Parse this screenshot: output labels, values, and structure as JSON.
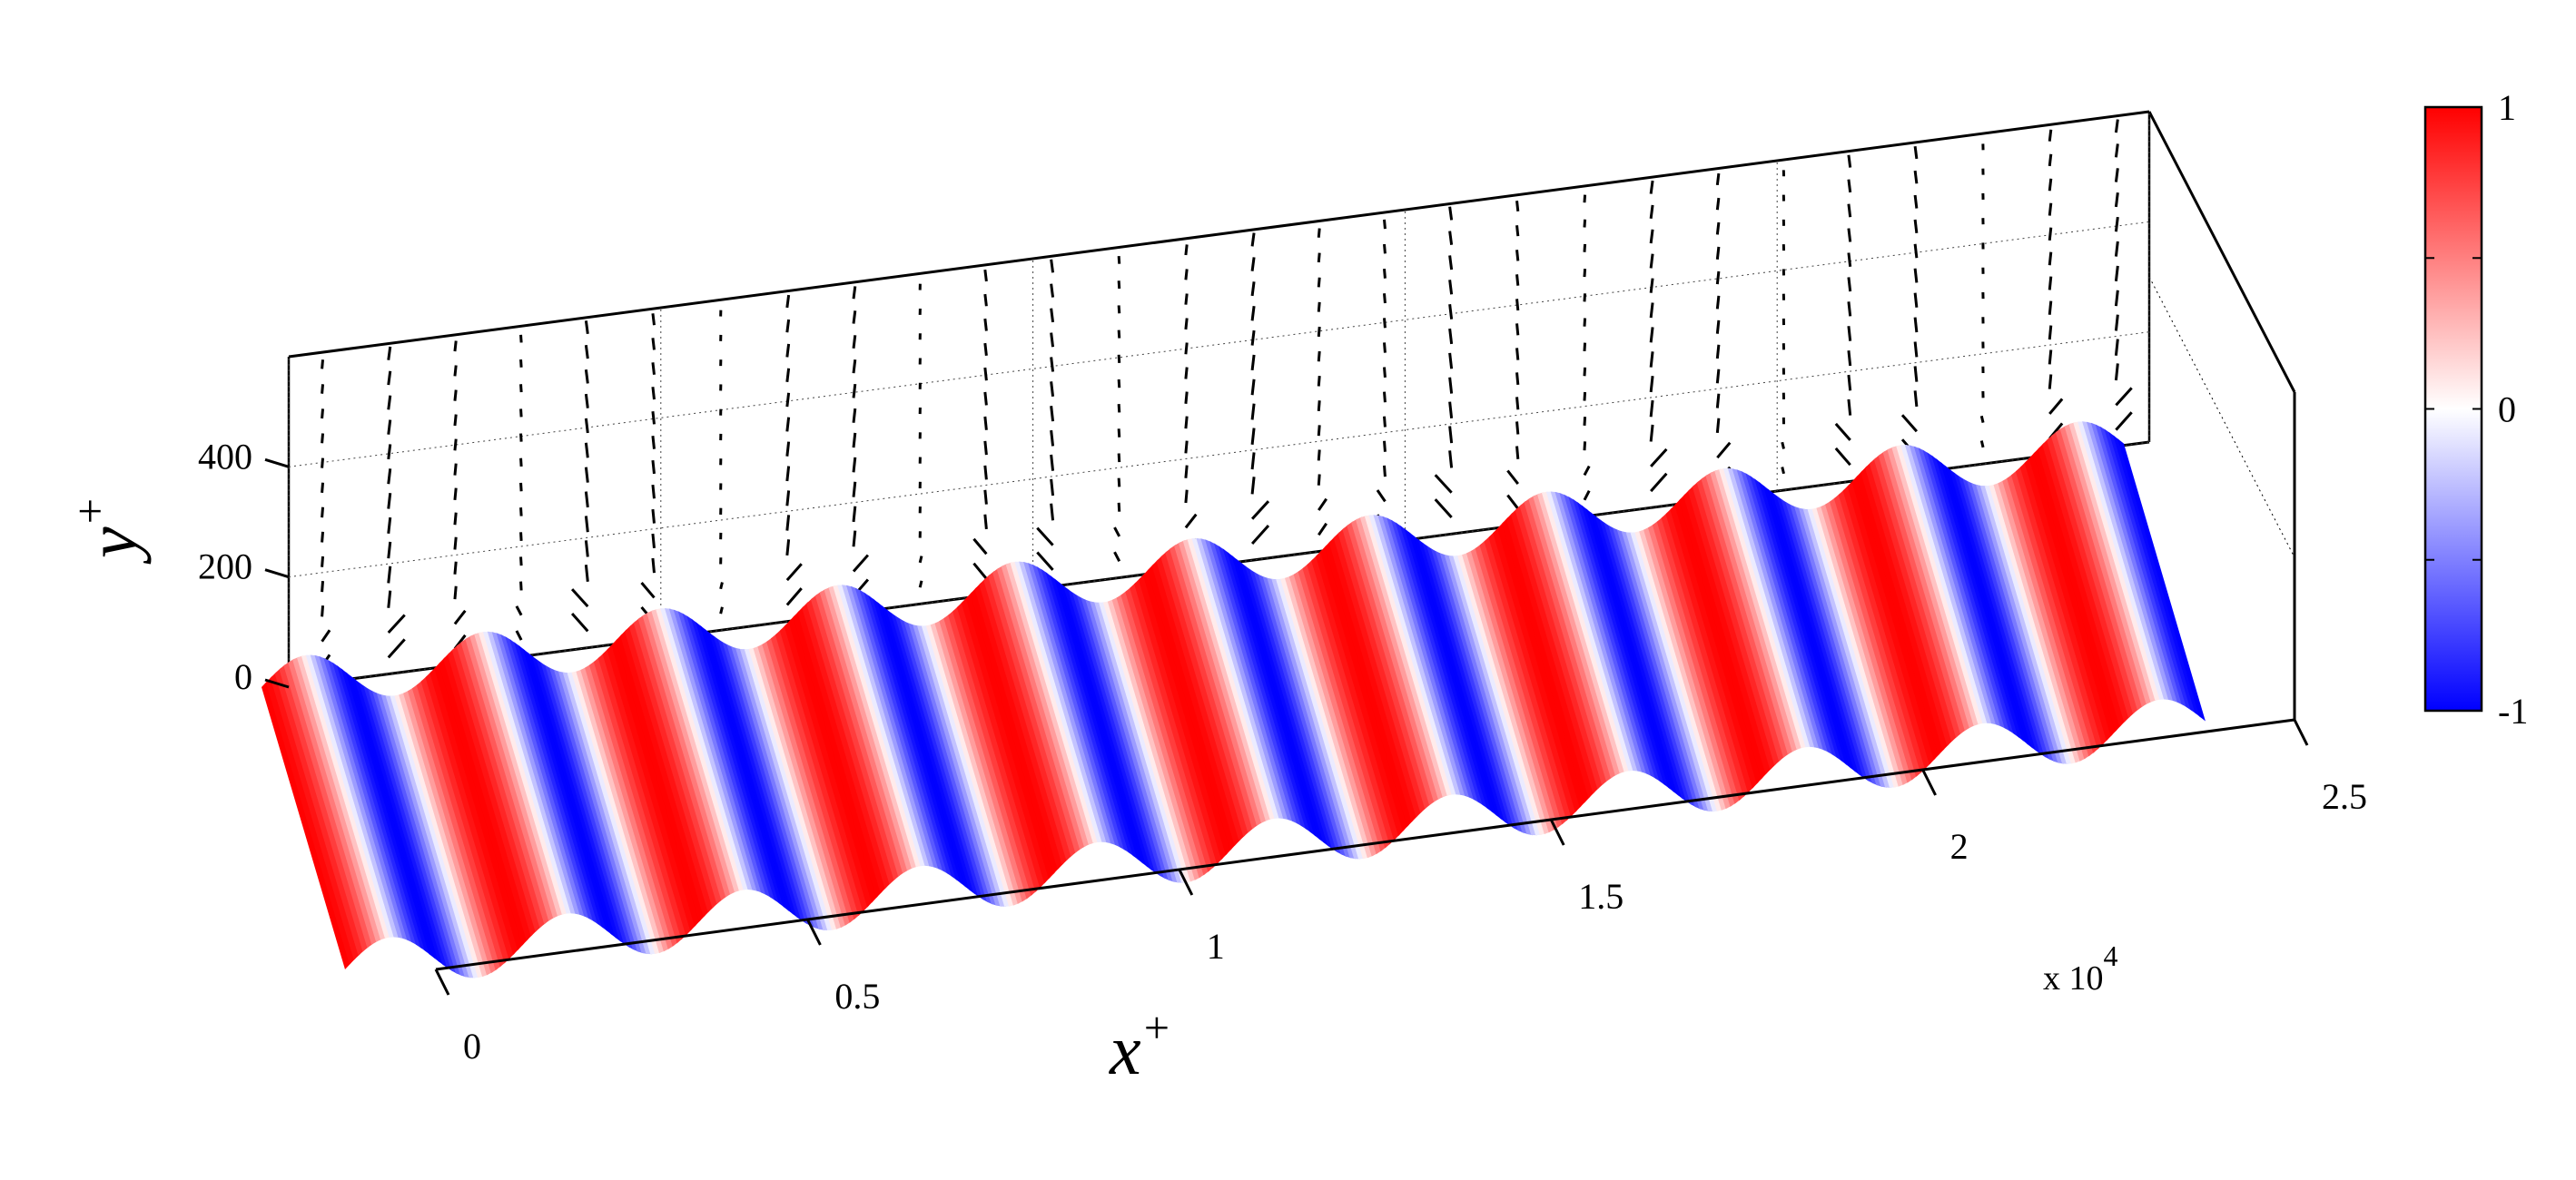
{
  "chart_data": {
    "type": "surface",
    "title": "",
    "xlabel": "x",
    "xlabel_sup": "+",
    "ylabel": "y",
    "ylabel_sup": "+",
    "x_ticks": [
      "0",
      "0.5",
      "1",
      "1.5",
      "2",
      "2.5"
    ],
    "x_tick_values": [
      0,
      0.5,
      1,
      1.5,
      2,
      2.5
    ],
    "x_multiplier": "x 10",
    "x_multiplier_exp": "4",
    "xlim": [
      0,
      2.5
    ],
    "y_ticks": [
      "0",
      "200",
      "400"
    ],
    "y_tick_values": [
      0,
      200,
      400
    ],
    "ylim": [
      0,
      600
    ],
    "colorbar": {
      "range": [
        -1,
        1
      ],
      "ticks": [
        "1",
        "0",
        "-1"
      ],
      "tick_values": [
        1,
        0,
        -1
      ],
      "colors": [
        "#0000ff",
        "#ffffff",
        "#ff0000"
      ]
    },
    "wave": {
      "wavelengths": 10.5,
      "color_phase_offset": 0.5
    },
    "vector_field": {
      "plane": "back wall (x-y)",
      "columns": 28,
      "rows": 13,
      "color": "#000000"
    },
    "grid": true,
    "legend": "colorbar right"
  }
}
